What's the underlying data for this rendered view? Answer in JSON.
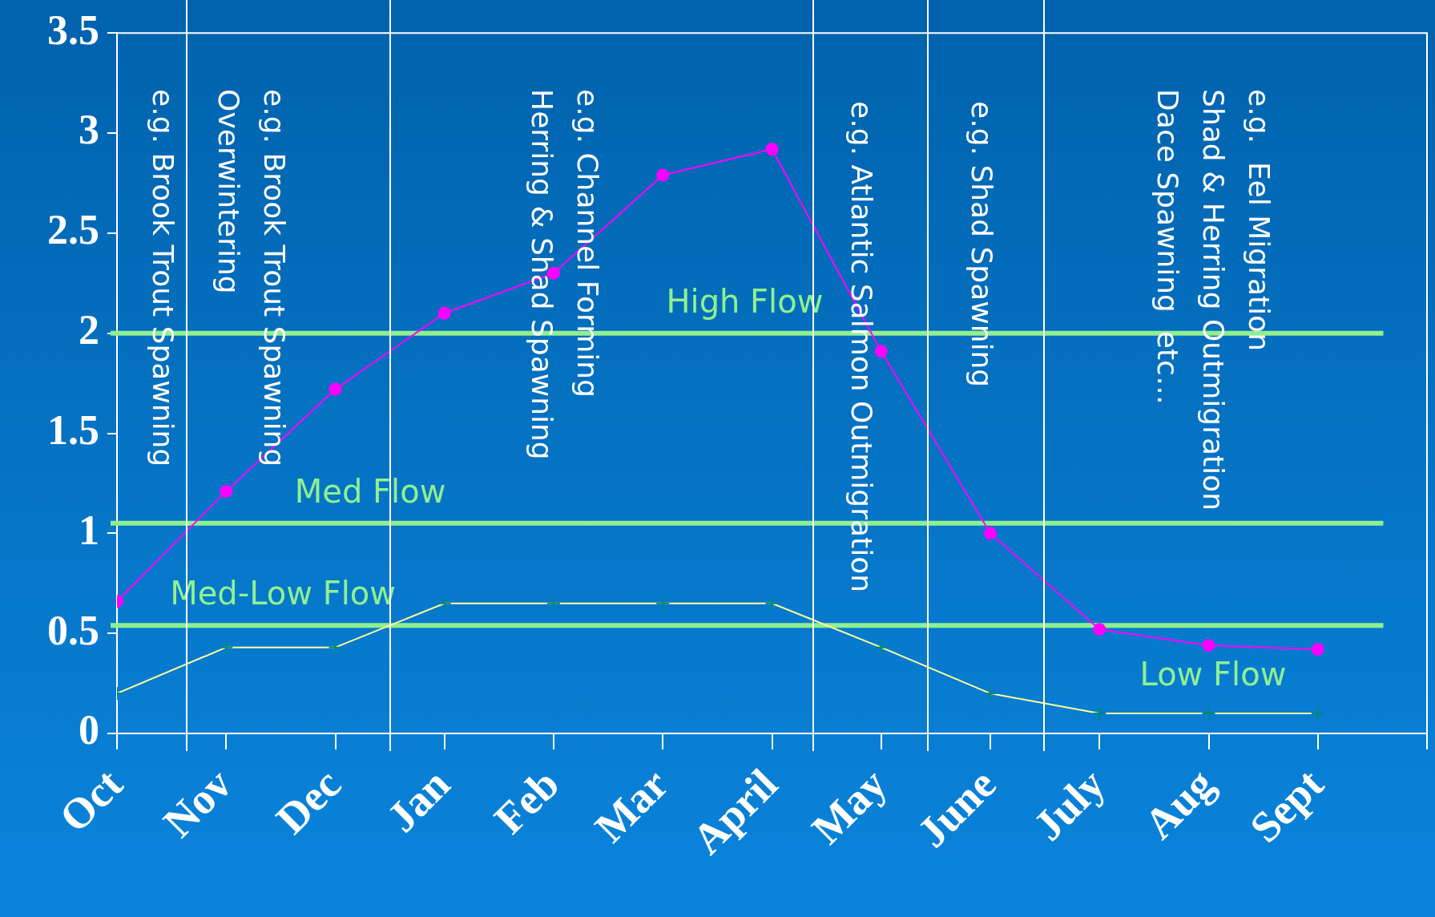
{
  "chart_data": {
    "type": "line",
    "categories": [
      "Oct",
      "Nov",
      "Dec",
      "Jan",
      "Feb",
      "Mar",
      "April",
      "May",
      "June",
      "July",
      "Aug",
      "Sept"
    ],
    "series": [
      {
        "color": "#ff00ff",
        "marker": "circle",
        "values": [
          0.66,
          1.21,
          1.72,
          2.1,
          2.3,
          2.79,
          2.92,
          1.91,
          1.0,
          0.52,
          0.44,
          0.42
        ]
      },
      {
        "color": "#ffff99",
        "marker": "cross",
        "values": [
          0.2,
          0.43,
          0.43,
          0.65,
          0.65,
          0.65,
          0.65,
          0.43,
          0.2,
          0.1,
          0.1,
          0.1
        ]
      }
    ],
    "ylim": [
      0,
      3.5
    ],
    "yticks": [
      0,
      0.5,
      1,
      1.5,
      2,
      2.5,
      3,
      3.5
    ],
    "grid": false,
    "legend": false,
    "line_style": "solid",
    "ref_lines": [
      {
        "axis": "y",
        "value": 2,
        "label": "High Flow",
        "color": "#90f090"
      },
      {
        "axis": "y",
        "value": 1.05,
        "label": "Med Flow",
        "color": "#90f090"
      },
      {
        "axis": "y",
        "value": 0.54,
        "label": "Med-Low Flow",
        "color": "#90f090"
      }
    ],
    "annotations": [
      "e.g. Brook Trout Spawning",
      "e.g. Brook Trout Spawning\nOverwintering",
      "e.g. Channel Forming\nHerring & Shad Spawning",
      "e.g. Atlantic Salmon Outmigration",
      "e.g. Shad Spawning",
      "e.g.  Eel Migration\nShad & Herring Outmigration\nDace Spawning  etc…",
      "Low Flow"
    ]
  }
}
